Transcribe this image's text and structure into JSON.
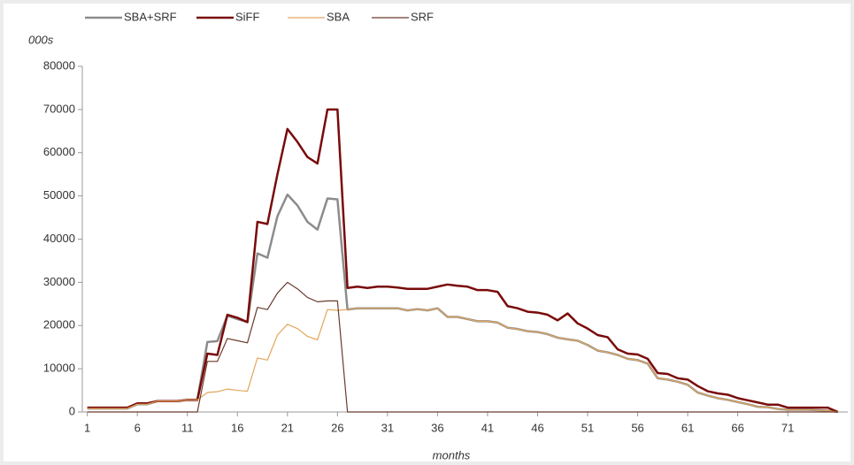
{
  "chart_data": {
    "type": "line",
    "y_label": "000s",
    "x_label": "months",
    "x": [
      1,
      2,
      3,
      4,
      5,
      6,
      7,
      8,
      9,
      10,
      11,
      12,
      13,
      14,
      15,
      16,
      17,
      18,
      19,
      20,
      21,
      22,
      23,
      24,
      25,
      26,
      27,
      28,
      29,
      30,
      31,
      32,
      33,
      34,
      35,
      36,
      37,
      38,
      39,
      40,
      41,
      42,
      43,
      44,
      45,
      46,
      47,
      48,
      49,
      50,
      51,
      52,
      53,
      54,
      55,
      56,
      57,
      58,
      59,
      60,
      61,
      62,
      63,
      64,
      65,
      66,
      67,
      68,
      69,
      70,
      71,
      72,
      73,
      74,
      75,
      76
    ],
    "xlim": [
      0.5,
      77
    ],
    "xticks": [
      1,
      6,
      11,
      16,
      21,
      26,
      31,
      36,
      41,
      46,
      51,
      56,
      61,
      66,
      71
    ],
    "ylim": [
      0,
      80000
    ],
    "yticks": [
      0,
      10000,
      20000,
      30000,
      40000,
      50000,
      60000,
      70000,
      80000
    ],
    "series": [
      {
        "name": "SBA+SRF",
        "color": "#8c8c8c",
        "width": 2.5,
        "values": [
          800,
          800,
          800,
          800,
          800,
          1800,
          1800,
          2500,
          2500,
          2500,
          2800,
          2800,
          16200,
          16400,
          22300,
          21500,
          20800,
          36700,
          35700,
          45300,
          50300,
          47800,
          44000,
          42200,
          49400,
          49200,
          23700,
          24000,
          24000,
          24000,
          24000,
          24000,
          23500,
          23800,
          23500,
          24000,
          22000,
          22000,
          21500,
          21000,
          21000,
          20700,
          19500,
          19200,
          18700,
          18500,
          18000,
          17200,
          16800,
          16500,
          15500,
          14200,
          13800,
          13200,
          12300,
          12000,
          11200,
          7800,
          7500,
          7000,
          6300,
          4500,
          3800,
          3200,
          2800,
          2300,
          1800,
          1200,
          1100,
          700,
          500,
          500,
          500,
          400,
          300,
          0
        ]
      },
      {
        "name": "SiFF",
        "color": "#7a0a0a",
        "width": 2.5,
        "values": [
          1000,
          1000,
          1000,
          1000,
          1000,
          2000,
          2000,
          2500,
          2500,
          2500,
          2800,
          2800,
          13500,
          13200,
          22500,
          21800,
          20800,
          44000,
          43500,
          55000,
          65500,
          62500,
          59000,
          57500,
          70000,
          70000,
          28700,
          29000,
          28700,
          29000,
          29000,
          28800,
          28500,
          28500,
          28500,
          29000,
          29500,
          29200,
          29000,
          28200,
          28200,
          27800,
          24500,
          24000,
          23200,
          23000,
          22500,
          21200,
          22800,
          20500,
          19300,
          17800,
          17300,
          14500,
          13500,
          13300,
          12300,
          9000,
          8800,
          7800,
          7500,
          6000,
          4800,
          4300,
          4000,
          3200,
          2700,
          2200,
          1700,
          1700,
          1000,
          1000,
          1000,
          1000,
          1000,
          0
        ]
      },
      {
        "name": "SBA",
        "color": "#e3a65c",
        "width": 1.2,
        "values": [
          800,
          800,
          800,
          800,
          800,
          1800,
          1800,
          2500,
          2500,
          2500,
          2800,
          2800,
          4500,
          4700,
          5300,
          5000,
          4800,
          12500,
          12000,
          17800,
          20300,
          19300,
          17500,
          16700,
          23700,
          23500,
          23700,
          24000,
          24000,
          24000,
          24000,
          24000,
          23500,
          23800,
          23500,
          24000,
          22000,
          22000,
          21500,
          21000,
          21000,
          20700,
          19500,
          19200,
          18700,
          18500,
          18000,
          17200,
          16800,
          16500,
          15500,
          14200,
          13800,
          13200,
          12300,
          12000,
          11200,
          7800,
          7500,
          7000,
          6300,
          4500,
          3800,
          3200,
          2800,
          2300,
          1800,
          1200,
          1100,
          700,
          500,
          500,
          500,
          400,
          300,
          0
        ]
      },
      {
        "name": "SRF",
        "color": "#6b3a2c",
        "width": 1.2,
        "values": [
          0,
          0,
          0,
          0,
          0,
          0,
          0,
          0,
          0,
          0,
          0,
          0,
          11700,
          11700,
          17000,
          16500,
          16000,
          24200,
          23700,
          27500,
          30000,
          28500,
          26500,
          25500,
          25700,
          25700,
          0,
          0,
          0,
          0,
          0,
          0,
          0,
          0,
          0,
          0,
          0,
          0,
          0,
          0,
          0,
          0,
          0,
          0,
          0,
          0,
          0,
          0,
          0,
          0,
          0,
          0,
          0,
          0,
          0,
          0,
          0,
          0,
          0,
          0,
          0,
          0,
          0,
          0,
          0,
          0,
          0,
          0,
          0,
          0,
          0,
          0,
          0,
          0,
          0,
          0
        ]
      }
    ]
  }
}
